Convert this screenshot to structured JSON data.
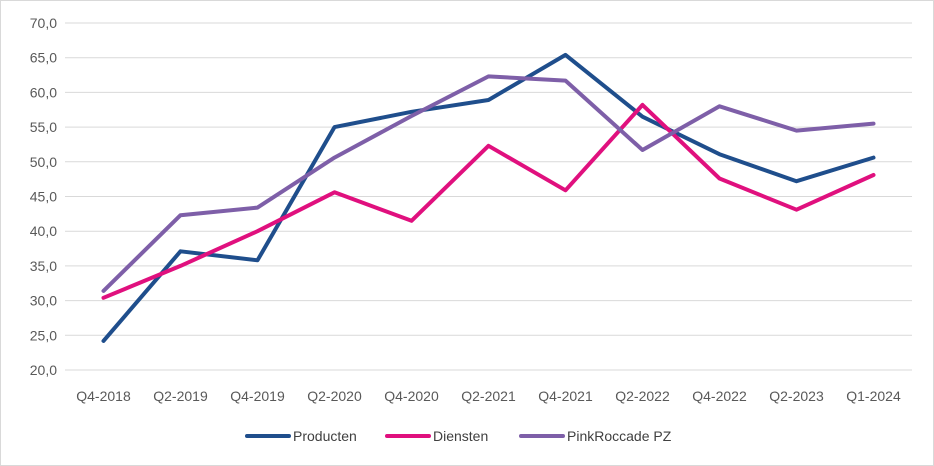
{
  "chart_data": {
    "type": "line",
    "title": "",
    "xlabel": "",
    "ylabel": "",
    "categories": [
      "Q4-2018",
      "Q2-2019",
      "Q4-2019",
      "Q2-2020",
      "Q4-2020",
      "Q2-2021",
      "Q4-2021",
      "Q2-2022",
      "Q4-2022",
      "Q2-2023",
      "Q1-2024"
    ],
    "y_ticks": [
      "20,0",
      "25,0",
      "30,0",
      "35,0",
      "40,0",
      "45,0",
      "50,0",
      "55,0",
      "60,0",
      "65,0",
      "70,0"
    ],
    "ylim": [
      20,
      70
    ],
    "y_step": 5,
    "grid": true,
    "legend_position": "bottom",
    "series": [
      {
        "name": "Producten",
        "color": "#1F4E8C",
        "values": [
          24.2,
          37.1,
          35.8,
          55.0,
          57.2,
          58.9,
          65.4,
          56.5,
          51.1,
          47.2,
          50.6
        ]
      },
      {
        "name": "Diensten",
        "color": "#E0107E",
        "values": [
          30.4,
          35.0,
          40.0,
          45.6,
          41.5,
          52.3,
          45.9,
          58.2,
          47.6,
          43.1,
          48.1
        ]
      },
      {
        "name": "PinkRoccade PZ",
        "color": "#7E5FA8",
        "values": [
          31.4,
          42.3,
          43.4,
          50.6,
          56.6,
          62.3,
          61.7,
          51.7,
          58.0,
          54.5,
          55.5
        ]
      }
    ]
  }
}
